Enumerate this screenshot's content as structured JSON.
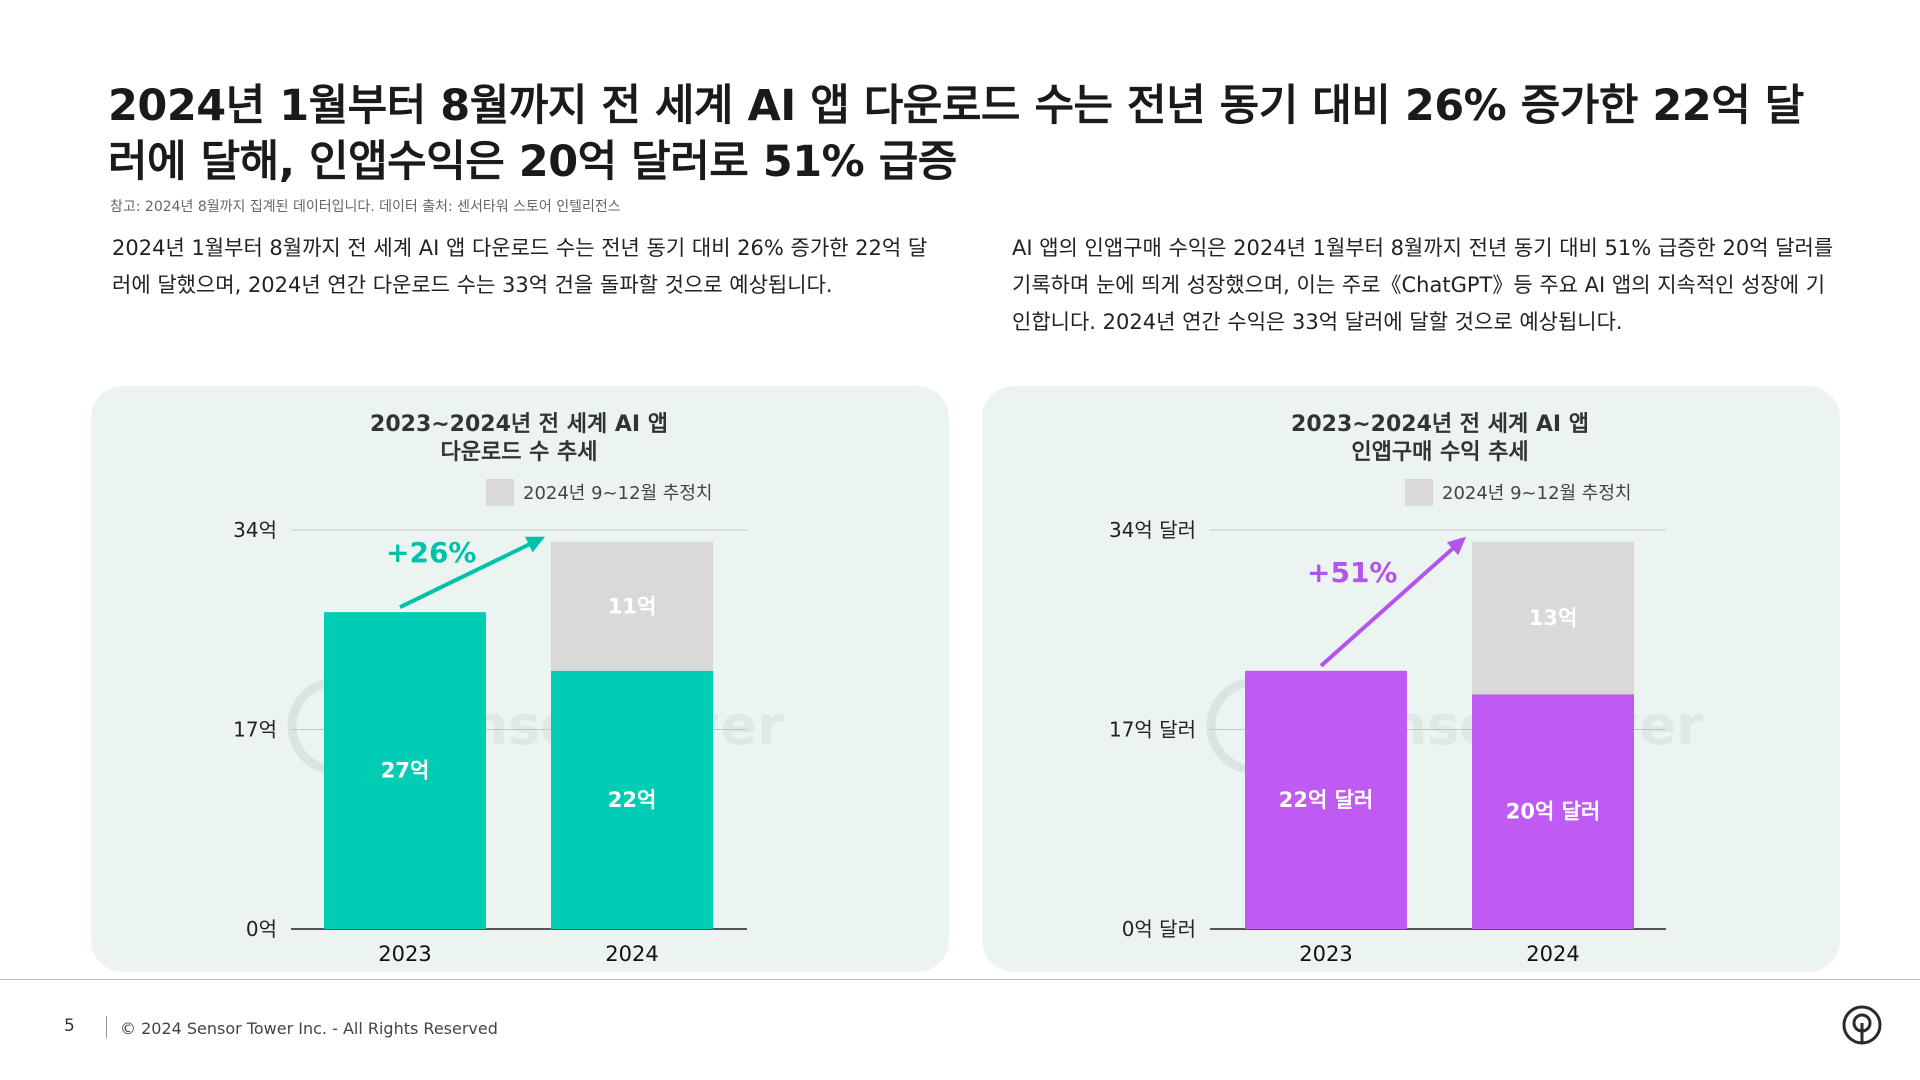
{
  "header": {
    "title": "2024년 1월부터 8월까지 전 세계 AI 앱 다운로드 수는 전년 동기 대비 26% 증가한 22억 달러에 달해, 인앱수익은 20억 달러로 51% 급증",
    "note": "참고: 2024년 8월까지 집계된 데이터입니다. 데이터 출처: 센서타워 스토어 인텔리전스"
  },
  "descriptions": {
    "left": "2024년 1월부터 8월까지 전 세계 AI 앱 다운로드 수는 전년 동기 대비 26% 증가한 22억 달러에 달했으며, 2024년 연간 다운로드 수는 33억 건을 돌파할 것으로 예상됩니다.",
    "right": "AI 앱의 인앱구매 수익은 2024년 1월부터 8월까지 전년 동기 대비 51% 급증한 20억 달러를 기록하며 눈에 띄게 성장했으며, 이는 주로《ChatGPT》등 주요 AI 앱의 지속적인 성장에 기인합니다. 2024년 연간 수익은 33억 달러에 달할 것으로 예상됩니다."
  },
  "chart_data": [
    {
      "type": "bar",
      "stacked": true,
      "title_lines": [
        "2023~2024년 전 세계 AI 앱",
        "다운로드 수 추세"
      ],
      "categories": [
        "2023",
        "2024"
      ],
      "series": [
        {
          "values": [
            27,
            22
          ],
          "labels": [
            "27억",
            "22억"
          ],
          "color": "#00cdb4"
        },
        {
          "name": "2024년 9~12월 추정치",
          "values": [
            0,
            11
          ],
          "labels": [
            "",
            "11억"
          ],
          "color": "#d9d9d9"
        }
      ],
      "y_ticks": [
        0,
        17,
        34
      ],
      "y_tick_labels": [
        "0억",
        "17억",
        "34억"
      ],
      "ylim": [
        0,
        34
      ],
      "annotation": {
        "text": "+26%",
        "color": "#00c2aa"
      },
      "legend_position": "top",
      "grid": true,
      "watermark": "SensorTower"
    },
    {
      "type": "bar",
      "stacked": true,
      "title_lines": [
        "2023~2024년 전 세계 AI 앱",
        "인앱구매 수익 추세"
      ],
      "categories": [
        "2023",
        "2024"
      ],
      "series": [
        {
          "values": [
            22,
            20
          ],
          "labels": [
            "22억 달러",
            "20억 달러"
          ],
          "color": "#bf5af2"
        },
        {
          "name": "2024년 9~12월 추정치",
          "values": [
            0,
            13
          ],
          "labels": [
            "",
            "13억"
          ],
          "color": "#d9d9d9"
        }
      ],
      "y_ticks": [
        0,
        17,
        34
      ],
      "y_tick_labels": [
        "0억 달러",
        "17억 달러",
        "34억 달러"
      ],
      "ylim": [
        0,
        34
      ],
      "annotation": {
        "text": "+51%",
        "color": "#b454ec"
      },
      "legend_position": "top",
      "grid": true,
      "watermark": "SensorTower"
    }
  ],
  "footer": {
    "page": "5",
    "copyright": "© 2024 Sensor Tower Inc. - All Rights Reserved",
    "logo_icon": "sensor-tower-logo-icon"
  },
  "colors": {
    "panel_bg": "#ecf4f2",
    "teal": "#00cdb4",
    "purple": "#bf5af2",
    "estimate_gray": "#d9d9d9"
  }
}
